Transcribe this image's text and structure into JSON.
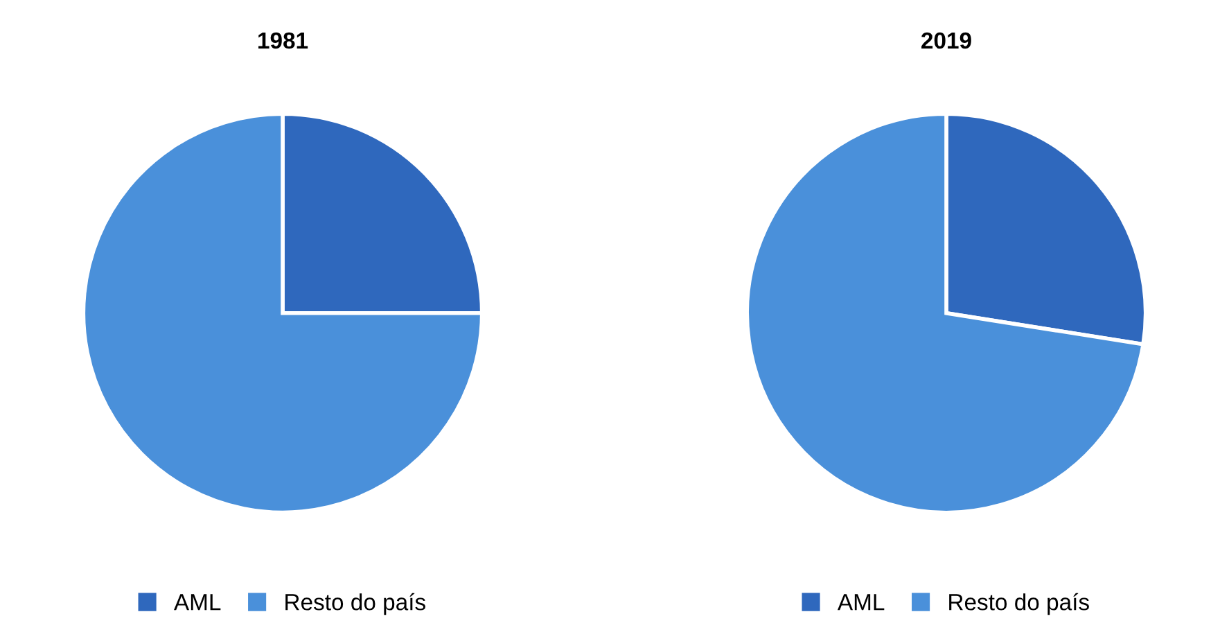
{
  "chart_data": [
    {
      "type": "pie",
      "title": "1981",
      "categories": [
        "AML",
        "Resto do país"
      ],
      "values": [
        25,
        75
      ],
      "colors": [
        "#2f68bd",
        "#4a90da"
      ],
      "legend": "bottom"
    },
    {
      "type": "pie",
      "title": "2019",
      "categories": [
        "AML",
        "Resto do país"
      ],
      "values": [
        27.5,
        72.5
      ],
      "colors": [
        "#2f68bd",
        "#4a90da"
      ],
      "legend": "bottom"
    }
  ]
}
